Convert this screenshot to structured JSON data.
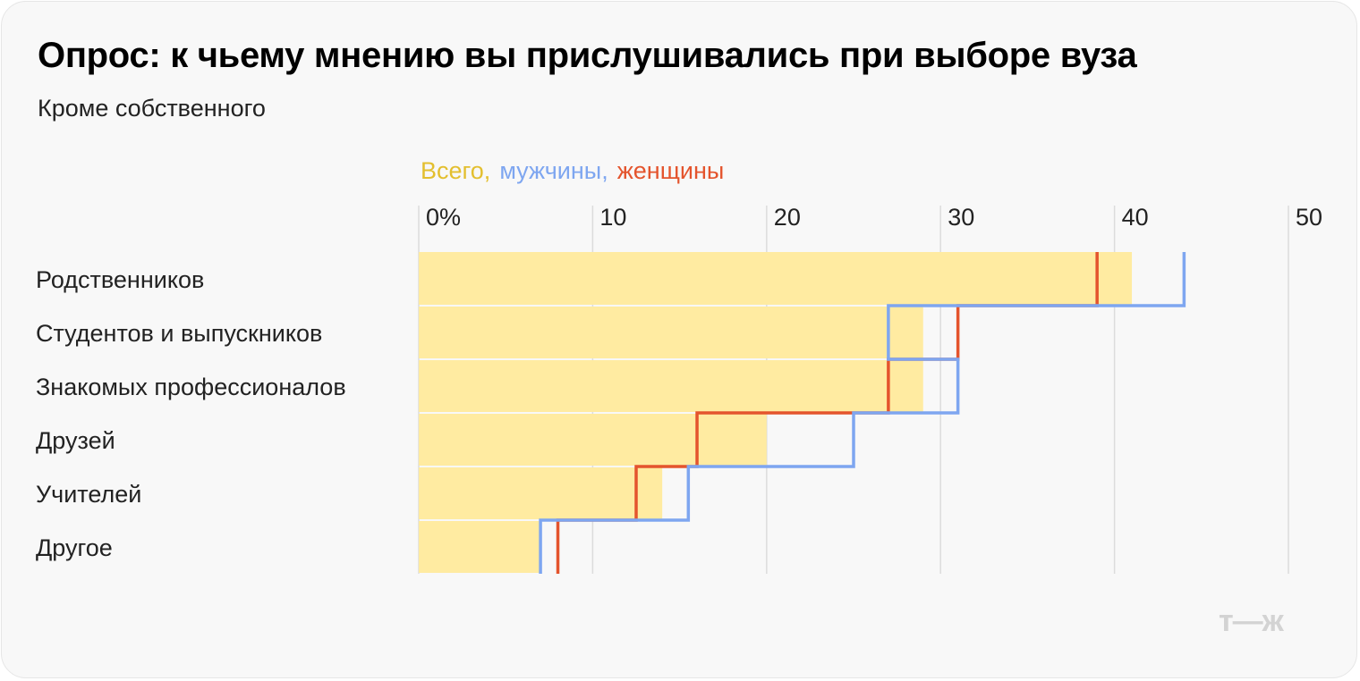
{
  "title": "Опрос: к чьему мнению вы прислушивались при выборе вуза",
  "subtitle": "Кроме собственного",
  "legend": {
    "total": "Всего,",
    "men": "мужчины,",
    "women": "женщины"
  },
  "logo": "т—ж",
  "colors": {
    "total": "#ffeba1",
    "men": "#7ea6f0",
    "women": "#e4542d",
    "legend_total": "#e3bf2f",
    "grid": "#dcdcdc"
  },
  "chart_data": {
    "type": "bar",
    "orientation": "horizontal",
    "title": "Опрос: к чьему мнению вы прислушивались при выборе вуза",
    "subtitle": "Кроме собственного",
    "categories": [
      "Родственников",
      "Студентов и выпускников",
      "Знакомых профессионалов",
      "Друзей",
      "Учителей",
      "Другое"
    ],
    "series": [
      {
        "name": "Всего",
        "type": "bar",
        "values": [
          41,
          29,
          29,
          20,
          14,
          7
        ]
      },
      {
        "name": "мужчины",
        "type": "step",
        "values": [
          44,
          27,
          31,
          25,
          15.5,
          7
        ]
      },
      {
        "name": "женщины",
        "type": "step",
        "values": [
          39,
          31,
          27,
          16,
          12.5,
          8
        ]
      }
    ],
    "xlim": [
      0,
      50
    ],
    "ticks": [
      {
        "value": 0,
        "label": "0%"
      },
      {
        "value": 10,
        "label": "10"
      },
      {
        "value": 20,
        "label": "20"
      },
      {
        "value": 30,
        "label": "30"
      },
      {
        "value": 40,
        "label": "40"
      },
      {
        "value": 50,
        "label": "50"
      }
    ],
    "grid": true,
    "legend_position": "top"
  }
}
